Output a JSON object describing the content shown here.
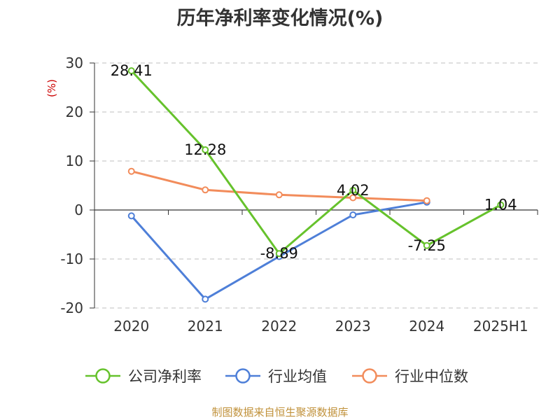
{
  "chart_data": {
    "type": "line",
    "title": "历年净利率变化情况(%)",
    "ylabel": "(%)",
    "xlabel": "",
    "categories": [
      "2020",
      "2021",
      "2022",
      "2023",
      "2024",
      "2025H1"
    ],
    "ylim": [
      -20,
      30
    ],
    "yticks": [
      30,
      20,
      10,
      0,
      -10,
      -20
    ],
    "grid": true,
    "legend_position": "bottom",
    "series": [
      {
        "name": "公司净利率",
        "color": "#66c22c",
        "values": [
          28.41,
          12.28,
          -8.89,
          4.02,
          -7.25,
          1.04
        ],
        "labels": [
          "28.41",
          "12.28",
          "-8.89",
          "4.02",
          "-7.25",
          "1.04"
        ]
      },
      {
        "name": "行业均值",
        "color": "#4e7fd8",
        "values": [
          -1.2,
          -18.2,
          -9.5,
          -1.0,
          1.6,
          null
        ]
      },
      {
        "name": "行业中位数",
        "color": "#f28c5b",
        "values": [
          7.9,
          4.1,
          3.1,
          2.5,
          1.9,
          null
        ]
      }
    ]
  },
  "footer": {
    "source": "制图数据来自恒生聚源数据库"
  }
}
